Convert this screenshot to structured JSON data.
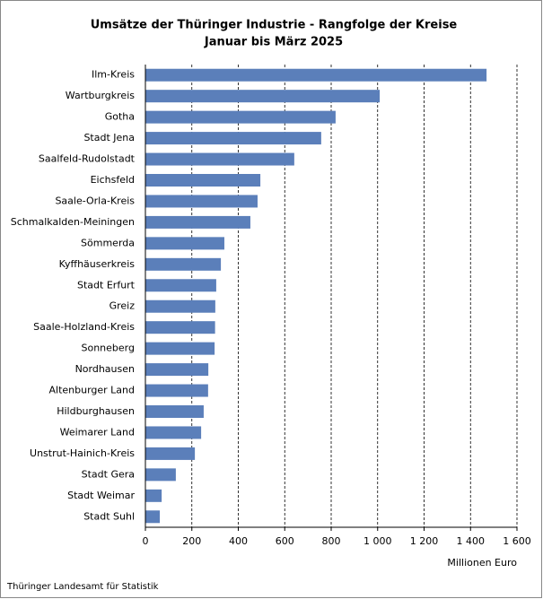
{
  "chart_data": {
    "type": "bar",
    "orientation": "horizontal",
    "title": "Umsätze der Thüringer Industrie - Rangfolge der Kreise",
    "subtitle": "Januar bis März 2025",
    "x_label": "Millionen Euro",
    "source": "Thüringer Landesamt für Statistik",
    "categories": [
      "Ilm-Kreis",
      "Wartburgkreis",
      "Gotha",
      "Stadt Jena",
      "Saalfeld-Rudolstadt",
      "Eichsfeld",
      "Saale-Orla-Kreis",
      "Schmalkalden-Meiningen",
      "Sömmerda",
      "Kyffhäuserkreis",
      "Stadt Erfurt",
      "Greiz",
      "Saale-Holzland-Kreis",
      "Sonneberg",
      "Nordhausen",
      "Altenburger Land",
      "Hildburghausen",
      "Weimarer Land",
      "Unstrut-Hainich-Kreis",
      "Stadt Gera",
      "Stadt Weimar",
      "Stadt Suhl"
    ],
    "values": [
      1469,
      1009,
      819,
      757,
      641,
      495,
      483,
      452,
      340,
      325,
      305,
      301,
      300,
      298,
      271,
      270,
      251,
      240,
      213,
      131,
      70,
      62
    ],
    "color": "#5b7fba",
    "xlim": [
      0,
      1600
    ],
    "xticks": [
      0,
      200,
      400,
      600,
      800,
      {
        "value": 1000,
        "label": "1 000"
      },
      {
        "value": 1200,
        "label": "1 200"
      },
      {
        "value": 1400,
        "label": "1 400"
      },
      {
        "value": 1600,
        "label": "1 600"
      }
    ],
    "grid": true
  }
}
